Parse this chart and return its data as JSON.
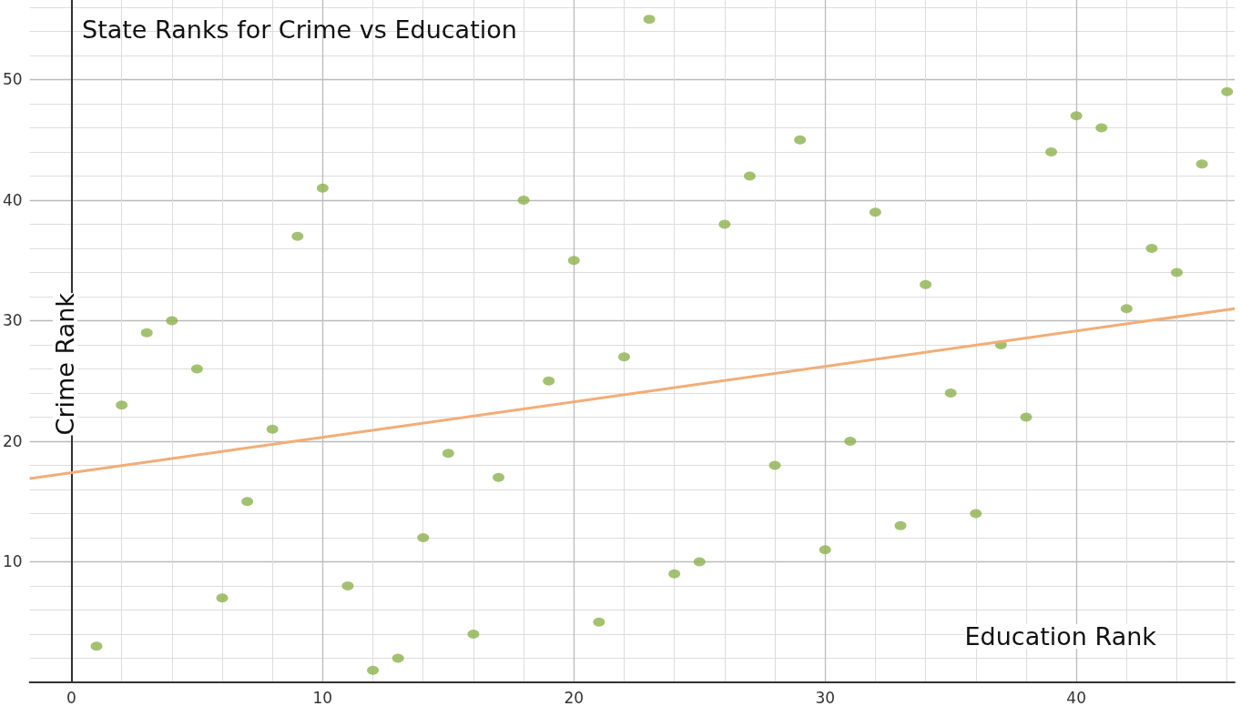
{
  "chart_data": {
    "type": "scatter",
    "title": "State Ranks for Crime vs Education",
    "xlabel": "Education Rank",
    "ylabel": "Crime Rank",
    "xlim": [
      -1.66,
      46.3
    ],
    "ylim": [
      0,
      56.6
    ],
    "xticks": [
      0,
      10,
      20,
      30,
      40
    ],
    "yticks": [
      10,
      20,
      30,
      40,
      50
    ],
    "grid": true,
    "series": [
      {
        "marker": "circle",
        "color": "#8db24e",
        "x": [
          1,
          2,
          3,
          4,
          5,
          6,
          7,
          8,
          9,
          10,
          11,
          12,
          13,
          14,
          15,
          16,
          17,
          18,
          19,
          20,
          21,
          22,
          23,
          24,
          25,
          26,
          27,
          28,
          29,
          30,
          31,
          32,
          33,
          34,
          35,
          36,
          37,
          38,
          39,
          40,
          41,
          42,
          43,
          44,
          45,
          46
        ],
        "values": [
          3,
          23,
          29,
          30,
          26,
          7,
          15,
          21,
          37,
          41,
          8,
          1,
          2,
          12,
          19,
          4,
          17,
          40,
          25,
          35,
          5,
          27,
          55,
          9,
          10,
          38,
          42,
          18,
          45,
          11,
          20,
          39,
          13,
          33,
          24,
          14,
          28,
          22,
          44,
          47,
          46,
          31,
          36,
          34,
          43,
          49
        ]
      },
      {
        "type": "line",
        "marker": "none",
        "color": "#f2ad77",
        "x": [
          -1.66,
          46.3
        ],
        "values": [
          16.9,
          31.0
        ]
      }
    ]
  }
}
